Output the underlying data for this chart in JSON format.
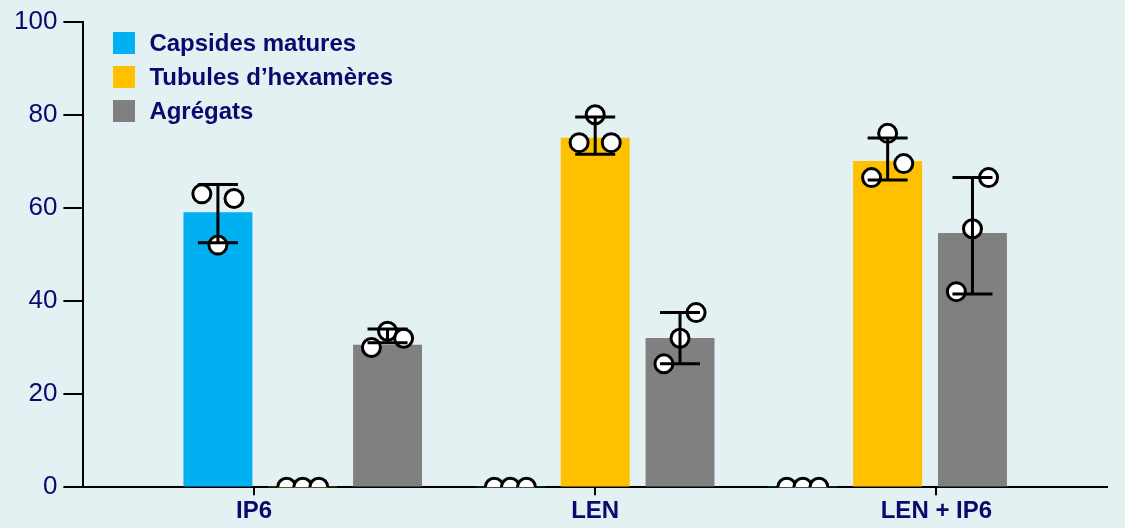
{
  "chart_data": {
    "type": "bar",
    "categories": [
      "IP6",
      "LEN",
      "LEN + IP6"
    ],
    "ylim": [
      0,
      100
    ],
    "yticks": [
      0,
      20,
      40,
      60,
      80,
      100
    ],
    "legend": "top left",
    "marker": "circle",
    "series": [
      {
        "name": "Capsides matures",
        "color": "#00b0f0",
        "values": [
          59,
          0,
          0
        ],
        "errors": [
          [
            52.5,
            65
          ],
          null,
          null
        ]
      },
      {
        "name": "Tubules d’hexamères",
        "color": "#ffc000",
        "values": [
          0,
          75,
          70
        ],
        "errors": [
          null,
          [
            71.5,
            79.5
          ],
          [
            66,
            75
          ]
        ]
      },
      {
        "name": "Agrégats",
        "color": "#808080",
        "values": [
          30.5,
          32,
          54.5
        ],
        "errors": [
          [
            31,
            34
          ],
          [
            26.5,
            37.5
          ],
          [
            41.5,
            66.5
          ]
        ]
      },
      {
        "type": "scatter",
        "color": "#ffffff",
        "x": [
          "IP6",
          "IP6",
          "IP6",
          "LEN",
          "LEN",
          "LEN",
          "LEN + IP6",
          "LEN + IP6",
          "LEN + IP6"
        ],
        "values": [
          63,
          52,
          62,
          0,
          0,
          0,
          0,
          0,
          0
        ]
      },
      {
        "type": "scatter",
        "color": "#ffffff",
        "x": [
          "IP6",
          "IP6",
          "IP6",
          "LEN",
          "LEN",
          "LEN",
          "LEN + IP6",
          "LEN + IP6",
          "LEN + IP6"
        ],
        "values": [
          0,
          0,
          0,
          74,
          80,
          74,
          66.5,
          76,
          69.5
        ]
      },
      {
        "type": "scatter",
        "color": "#ffffff",
        "x": [
          "IP6",
          "IP6",
          "IP6",
          "LEN",
          "LEN",
          "LEN",
          "LEN + IP6",
          "LEN + IP6",
          "LEN + IP6"
        ],
        "values": [
          30,
          33.5,
          32,
          26.5,
          32,
          37.5,
          42,
          55.5,
          66.5
        ]
      }
    ]
  }
}
